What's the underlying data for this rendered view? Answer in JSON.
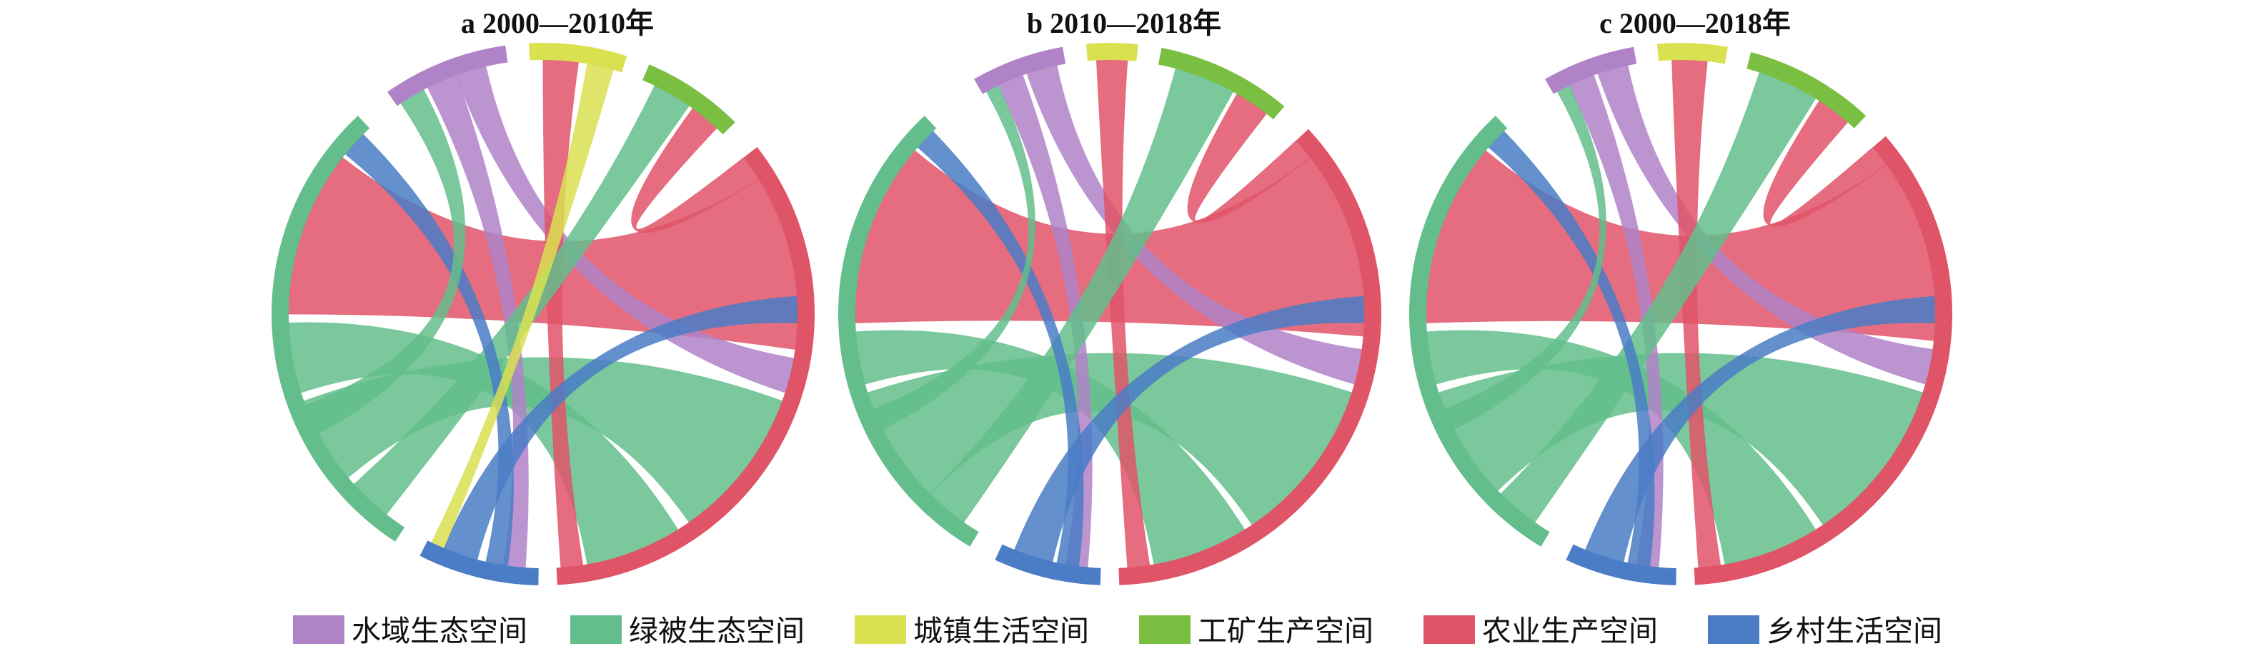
{
  "categories": [
    {
      "id": "water",
      "name": "水域生态空间",
      "color": "#B083C8"
    },
    {
      "id": "green",
      "name": "绿被生态空间",
      "color": "#63BE8B"
    },
    {
      "id": "urban",
      "name": "城镇生活空间",
      "color": "#D9E151"
    },
    {
      "id": "industry",
      "name": "工矿生产空间",
      "color": "#7BBF42"
    },
    {
      "id": "agri",
      "name": "农业生产空间",
      "color": "#E05468"
    },
    {
      "id": "rural",
      "name": "乡村生活空间",
      "color": "#4A7DC5"
    }
  ],
  "chart_data": [
    {
      "type": "chord",
      "title": "a 2000—2010年",
      "segments": [
        {
          "cat": "water",
          "start": 325,
          "end": 352
        },
        {
          "cat": "urban",
          "start": 357,
          "end": 378
        },
        {
          "cat": "industry",
          "start": 383,
          "end": 405
        },
        {
          "cat": "agri",
          "start": 412,
          "end": 537
        },
        {
          "cat": "rural",
          "start": 541,
          "end": 567
        },
        {
          "cat": "green",
          "start": 573,
          "end": 677
        }
      ],
      "ribbons": [
        {
          "from": "green",
          "to": "agri",
          "a": [
            590,
            610
          ],
          "b": [
            470,
            505
          ],
          "color": "#63BE8B"
        },
        {
          "from": "agri",
          "to": "green",
          "a": [
            418,
            458
          ],
          "b": [
            630,
            668
          ],
          "color": "#E05468"
        },
        {
          "from": "green",
          "to": "agri",
          "a": [
            612,
            628
          ],
          "b": [
            508,
            530
          ],
          "color": "#63BE8B"
        },
        {
          "from": "water",
          "to": "rural",
          "a": [
            333,
            340
          ],
          "b": [
            544,
            549
          ],
          "color": "#B083C8"
        },
        {
          "from": "water",
          "to": "agri",
          "a": [
            340,
            347
          ],
          "b": [
            460,
            468
          ],
          "color": "#B083C8"
        },
        {
          "from": "urban",
          "to": "agri",
          "a": [
            360,
            368
          ],
          "b": [
            531,
            536
          ],
          "color": "#E05468"
        },
        {
          "from": "industry",
          "to": "green",
          "a": [
            386,
            395
          ],
          "b": [
            578,
            588
          ],
          "color": "#63BE8B"
        },
        {
          "from": "industry",
          "to": "agri",
          "a": [
            396,
            403
          ],
          "b": [
            412,
            418
          ],
          "color": "#E05468"
        },
        {
          "from": "rural",
          "to": "agri",
          "a": [
            555,
            563
          ],
          "b": [
            446,
            452
          ],
          "color": "#4A7DC5"
        },
        {
          "from": "rural",
          "to": "green",
          "a": [
            548,
            553
          ],
          "b": [
            669,
            675
          ],
          "color": "#4A7DC5"
        },
        {
          "from": "water",
          "to": "green",
          "a": [
            326,
            332
          ],
          "b": [
            602,
            609
          ],
          "color": "#63BE8B"
        },
        {
          "from": "urban",
          "to": "rural",
          "a": [
            370,
            376
          ],
          "b": [
            563,
            566
          ],
          "color": "#D9E151"
        }
      ]
    },
    {
      "type": "chord",
      "title": "b 2010—2018年",
      "segments": [
        {
          "cat": "water",
          "start": 330,
          "end": 350
        },
        {
          "cat": "urban",
          "start": 355,
          "end": 366
        },
        {
          "cat": "industry",
          "start": 371,
          "end": 400
        },
        {
          "cat": "agri",
          "start": 407,
          "end": 538
        },
        {
          "cat": "rural",
          "start": 542,
          "end": 565
        },
        {
          "cat": "green",
          "start": 571,
          "end": 677
        }
      ],
      "ribbons": [
        {
          "from": "green",
          "to": "agri",
          "a": [
            585,
            612
          ],
          "b": [
            468,
            506
          ],
          "color": "#63BE8B"
        },
        {
          "from": "agri",
          "to": "green",
          "a": [
            412,
            455
          ],
          "b": [
            628,
            670
          ],
          "color": "#E05468"
        },
        {
          "from": "green",
          "to": "agri",
          "a": [
            614,
            626
          ],
          "b": [
            508,
            530
          ],
          "color": "#63BE8B"
        },
        {
          "from": "water",
          "to": "rural",
          "a": [
            334,
            340
          ],
          "b": [
            545,
            550
          ],
          "color": "#B083C8"
        },
        {
          "from": "water",
          "to": "agri",
          "a": [
            341,
            348
          ],
          "b": [
            458,
            466
          ],
          "color": "#B083C8"
        },
        {
          "from": "urban",
          "to": "agri",
          "a": [
            357,
            364
          ],
          "b": [
            531,
            536
          ],
          "color": "#E05468"
        },
        {
          "from": "industry",
          "to": "green",
          "a": [
            375,
            389
          ],
          "b": [
            575,
            585
          ],
          "color": "#63BE8B"
        },
        {
          "from": "industry",
          "to": "agri",
          "a": [
            390,
            398
          ],
          "b": [
            407,
            412
          ],
          "color": "#E05468"
        },
        {
          "from": "rural",
          "to": "agri",
          "a": [
            553,
            562
          ],
          "b": [
            446,
            452
          ],
          "color": "#4A7DC5"
        },
        {
          "from": "rural",
          "to": "green",
          "a": [
            547,
            552
          ],
          "b": [
            671,
            676
          ],
          "color": "#4A7DC5"
        },
        {
          "from": "water",
          "to": "green",
          "a": [
            331,
            334
          ],
          "b": [
            603,
            608
          ],
          "color": "#63BE8B"
        }
      ]
    },
    {
      "type": "chord",
      "title": "c 2000—2018年",
      "segments": [
        {
          "cat": "water",
          "start": 330,
          "end": 350
        },
        {
          "cat": "urban",
          "start": 355,
          "end": 370
        },
        {
          "cat": "industry",
          "start": 375,
          "end": 403
        },
        {
          "cat": "agri",
          "start": 409,
          "end": 537
        },
        {
          "cat": "rural",
          "start": 541,
          "end": 565
        },
        {
          "cat": "green",
          "start": 571,
          "end": 677
        }
      ],
      "ribbons": [
        {
          "from": "green",
          "to": "agri",
          "a": [
            586,
            612
          ],
          "b": [
            468,
            506
          ],
          "color": "#63BE8B"
        },
        {
          "from": "agri",
          "to": "green",
          "a": [
            414,
            456
          ],
          "b": [
            628,
            670
          ],
          "color": "#E05468"
        },
        {
          "from": "green",
          "to": "agri",
          "a": [
            614,
            626
          ],
          "b": [
            508,
            530
          ],
          "color": "#63BE8B"
        },
        {
          "from": "water",
          "to": "rural",
          "a": [
            334,
            340
          ],
          "b": [
            545,
            550
          ],
          "color": "#B083C8"
        },
        {
          "from": "water",
          "to": "agri",
          "a": [
            341,
            348
          ],
          "b": [
            458,
            466
          ],
          "color": "#B083C8"
        },
        {
          "from": "urban",
          "to": "agri",
          "a": [
            358,
            366
          ],
          "b": [
            531,
            536
          ],
          "color": "#E05468"
        },
        {
          "from": "industry",
          "to": "green",
          "a": [
            378,
            392
          ],
          "b": [
            575,
            585
          ],
          "color": "#63BE8B"
        },
        {
          "from": "industry",
          "to": "agri",
          "a": [
            393,
            401
          ],
          "b": [
            409,
            414
          ],
          "color": "#E05468"
        },
        {
          "from": "rural",
          "to": "agri",
          "a": [
            553,
            562
          ],
          "b": [
            446,
            452
          ],
          "color": "#4A7DC5"
        },
        {
          "from": "rural",
          "to": "green",
          "a": [
            547,
            552
          ],
          "b": [
            671,
            676
          ],
          "color": "#4A7DC5"
        },
        {
          "from": "water",
          "to": "green",
          "a": [
            331,
            334
          ],
          "b": [
            603,
            608
          ],
          "color": "#63BE8B"
        }
      ]
    }
  ]
}
